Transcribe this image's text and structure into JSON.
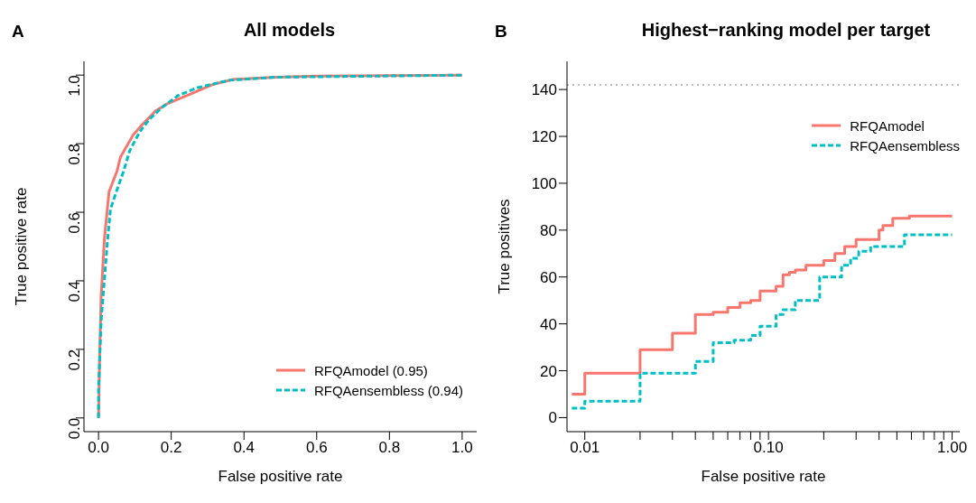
{
  "chart_data": [
    {
      "type": "line",
      "title": "All models",
      "xlabel": "False positive rate",
      "ylabel": "True positive rate",
      "annotations": [
        "A"
      ],
      "legend": "bottom right",
      "xlim": [
        -0.04,
        1.04
      ],
      "ylim": [
        -0.04,
        1.04
      ],
      "xticks": [
        {
          "value": 0,
          "label": "0.0"
        },
        0.2,
        0.4,
        0.6,
        0.8,
        {
          "value": 1,
          "label": "1.0"
        }
      ],
      "yticks": [
        {
          "value": 0,
          "label": "0.0"
        },
        0.2,
        0.4,
        0.6,
        0.8,
        {
          "value": 1,
          "label": "1.0"
        }
      ],
      "series": [
        {
          "name": "RFQAmodel (0.95)",
          "color": "#f8766d",
          "line_style": "solid",
          "x": [
            0,
            0.003,
            0.007,
            0.016,
            0.029,
            0.051,
            0.06,
            0.095,
            0.121,
            0.157,
            0.192,
            0.253,
            0.315,
            0.368,
            0.49,
            0.6,
            1
          ],
          "values": [
            0,
            0.17,
            0.35,
            0.52,
            0.66,
            0.72,
            0.76,
            0.825,
            0.856,
            0.896,
            0.918,
            0.945,
            0.973,
            0.987,
            0.994,
            0.997,
            1
          ]
        },
        {
          "name": "RFQAensembless (0.94)",
          "color": "#00bfc4",
          "line_style": "dashed",
          "x": [
            0,
            0,
            0.007,
            0.016,
            0.025,
            0.033,
            0.051,
            0.069,
            0.086,
            0.113,
            0.139,
            0.174,
            0.218,
            0.271,
            0.359,
            0.49,
            1
          ],
          "values": [
            0,
            0.08,
            0.28,
            0.4,
            0.52,
            0.61,
            0.666,
            0.72,
            0.78,
            0.834,
            0.87,
            0.905,
            0.94,
            0.963,
            0.985,
            0.994,
            1
          ]
        }
      ]
    },
    {
      "type": "step",
      "title": "Highest−ranking model per target",
      "xlabel": "False positive rate",
      "ylabel": "True positives",
      "annotations": [
        "B"
      ],
      "legend": "top right",
      "log": "x",
      "xlim": [
        0.008,
        1.1
      ],
      "ylim": [
        -6,
        152
      ],
      "xticks": [
        0.01,
        {
          "value": 0.02,
          "label": null
        },
        {
          "value": 0.03,
          "label": null
        },
        {
          "value": 0.04,
          "label": null
        },
        {
          "value": 0.05,
          "label": null
        },
        {
          "value": 0.06,
          "label": null
        },
        {
          "value": 0.07,
          "label": null
        },
        {
          "value": 0.08,
          "label": null
        },
        {
          "value": 0.09,
          "label": null
        },
        {
          "value": 0.1,
          "label": "0.10"
        },
        {
          "value": 0.2,
          "label": null
        },
        {
          "value": 0.3,
          "label": null
        },
        {
          "value": 0.4,
          "label": null
        },
        {
          "value": 0.5,
          "label": null
        },
        {
          "value": 0.6,
          "label": null
        },
        {
          "value": 0.7,
          "label": null
        },
        {
          "value": 0.8,
          "label": null
        },
        {
          "value": 0.9,
          "label": null
        },
        {
          "value": 1,
          "label": "1.00"
        }
      ],
      "yticks": [
        0,
        20,
        40,
        60,
        80,
        100,
        120,
        140
      ],
      "ref_lines": [
        {
          "axis": "y",
          "value": 142,
          "color": "#aaaaaa",
          "line_style": "dotted"
        }
      ],
      "series": [
        {
          "name": "RFQAmodel",
          "color": "#f8766d",
          "line_style": "solid",
          "x": [
            0.0085,
            0.01,
            0.02,
            0.03,
            0.04,
            0.05,
            0.06,
            0.07,
            0.08,
            0.09,
            0.11,
            0.12,
            0.13,
            0.14,
            0.16,
            0.2,
            0.23,
            0.26,
            0.3,
            0.4,
            0.42,
            0.475,
            0.585,
            1
          ],
          "values": [
            10,
            19,
            29,
            36,
            44,
            45,
            47,
            49,
            50,
            54,
            56,
            61,
            62,
            63,
            65,
            67,
            70,
            73,
            76,
            80,
            82,
            85,
            86,
            86
          ]
        },
        {
          "name": "RFQAensembless",
          "color": "#00bfc4",
          "line_style": "dashed",
          "x": [
            0.0085,
            0.01,
            0.02,
            0.04,
            0.05,
            0.065,
            0.08,
            0.09,
            0.11,
            0.12,
            0.14,
            0.19,
            0.25,
            0.28,
            0.31,
            0.36,
            0.55,
            1
          ],
          "values": [
            4,
            7,
            19,
            24,
            32,
            33,
            35,
            39,
            44,
            46,
            50,
            60,
            65,
            68,
            71,
            73,
            78,
            78
          ]
        }
      ]
    }
  ]
}
